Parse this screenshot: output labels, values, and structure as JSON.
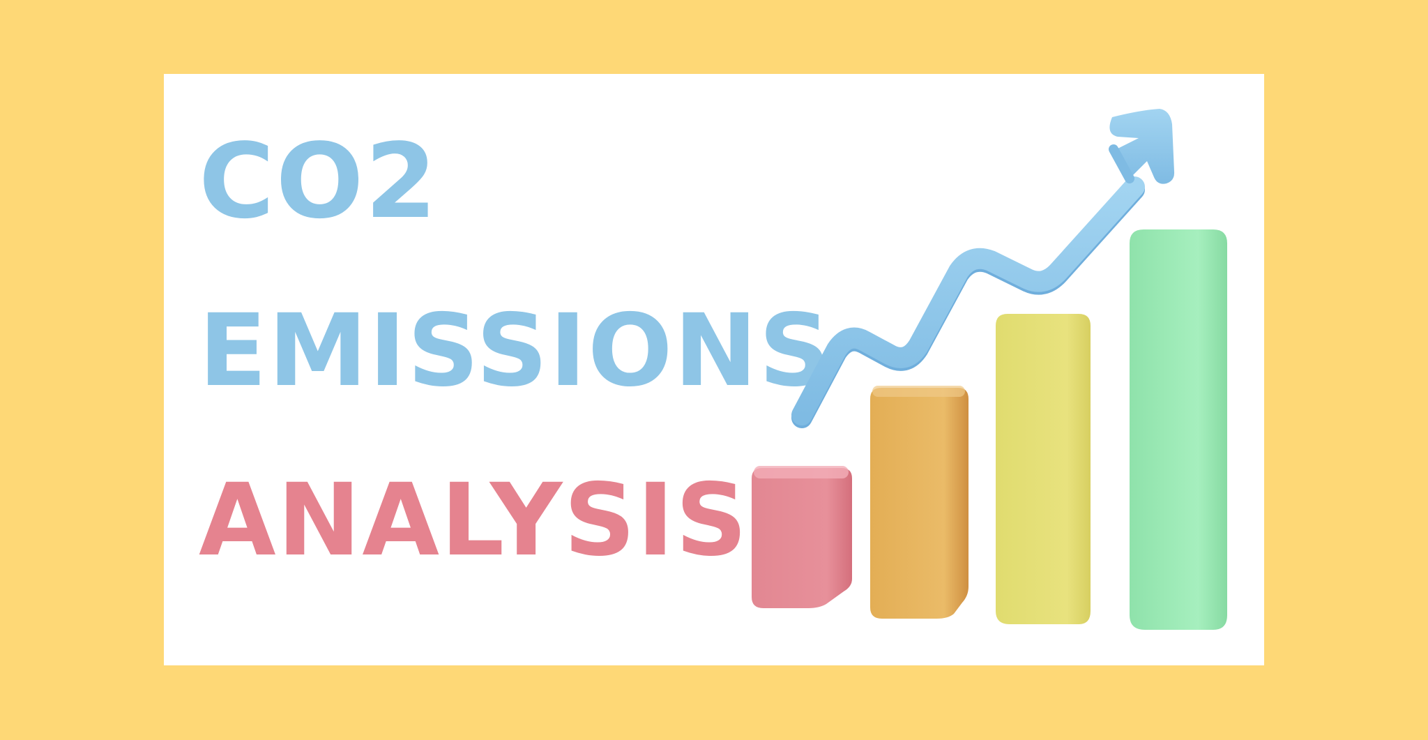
{
  "title": {
    "line_1": "CO2",
    "line_2": "EMISSIONS",
    "line_3": "ANALYSIS"
  },
  "colors": {
    "background": "#FED876",
    "panel": "#FFFFFF",
    "title_blue": "#8EC5E6",
    "title_pink": "#E5838F",
    "arrow": "#8FC9EA",
    "bar_pink": "#E8878F",
    "bar_orange": "#E8B359",
    "bar_yellow": "#E5E07A",
    "bar_green": "#9CEBB5"
  },
  "illustration": {
    "icon": "trend-up-arrow-icon",
    "bar_levels": [
      0.37,
      0.6,
      0.85,
      1.0
    ]
  }
}
